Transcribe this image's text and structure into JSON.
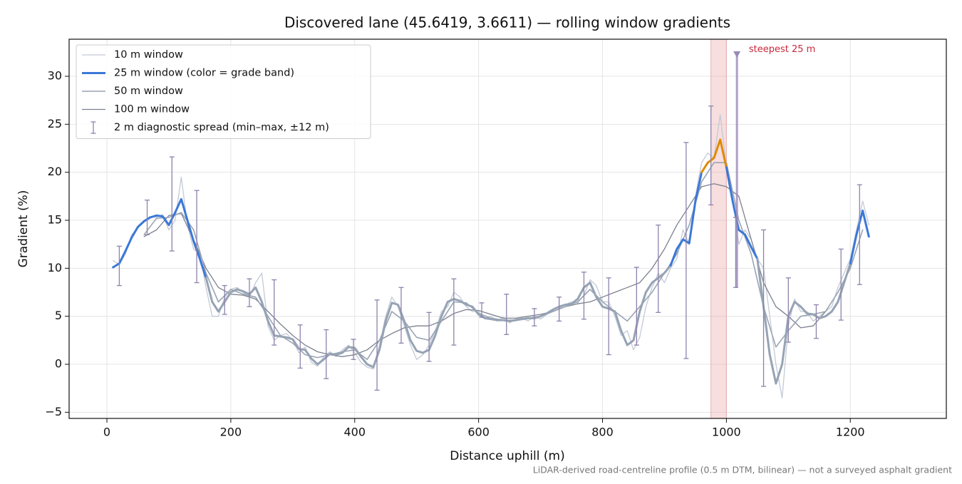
{
  "chart_data": {
    "type": "line",
    "title": "Discovered lane (45.6419, 3.6611) — rolling window gradients",
    "xlabel": "Distance uphill (m)",
    "ylabel": "Gradient (%)",
    "footnote": "LiDAR-derived road-centreline profile (0.5 m DTM, bilinear) — not a surveyed asphalt gradient",
    "xlim": [
      -61,
      1355
    ],
    "ylim": [
      -5.64,
      33.86
    ],
    "xticks": [
      0,
      200,
      400,
      600,
      800,
      1000,
      1200
    ],
    "yticks": [
      {
        "value": -5,
        "label": "−5"
      },
      0,
      5,
      10,
      15,
      20,
      25,
      30
    ],
    "grid": true,
    "legend": "upper left",
    "series": [
      {
        "name": "10 m window",
        "color": "#c3cad5",
        "width": 1.3,
        "x": [
          10,
          20,
          30,
          40,
          50,
          60,
          70,
          80,
          90,
          100,
          110,
          120,
          130,
          140,
          150,
          160,
          170,
          180,
          190,
          200,
          210,
          220,
          230,
          240,
          250,
          260,
          270,
          280,
          290,
          300,
          310,
          320,
          330,
          340,
          350,
          360,
          370,
          380,
          390,
          400,
          410,
          420,
          430,
          440,
          450,
          460,
          470,
          480,
          490,
          500,
          510,
          520,
          530,
          540,
          550,
          560,
          570,
          580,
          590,
          600,
          610,
          620,
          630,
          640,
          650,
          660,
          670,
          680,
          690,
          700,
          710,
          720,
          730,
          740,
          750,
          760,
          770,
          780,
          790,
          800,
          810,
          820,
          830,
          840,
          850,
          860,
          870,
          880,
          890,
          900,
          910,
          920,
          930,
          940,
          950,
          960,
          970,
          980,
          990,
          1000,
          1010,
          1020,
          1030,
          1040,
          1050,
          1060,
          1070,
          1080,
          1090,
          1100,
          1110,
          1120,
          1130,
          1140,
          1150,
          1160,
          1170,
          1180,
          1190,
          1200,
          1210,
          1220,
          1230
        ],
        "values": [
          10.8,
          10.4,
          11.5,
          13.5,
          14.2,
          15.0,
          15.4,
          15.3,
          15.6,
          14.0,
          15.0,
          19.5,
          14.5,
          12.0,
          11.5,
          8.0,
          5.0,
          5.0,
          7.0,
          7.8,
          8.0,
          7.5,
          7.0,
          8.5,
          9.5,
          4.0,
          2.5,
          3.0,
          3.2,
          2.5,
          1.2,
          1.8,
          0.2,
          -0.2,
          0.8,
          1.3,
          0.8,
          1.5,
          2.0,
          1.2,
          0.2,
          -0.3,
          -0.5,
          2.0,
          5.0,
          7.0,
          6.0,
          4.0,
          2.0,
          0.5,
          1.0,
          2.0,
          3.5,
          5.5,
          6.0,
          7.5,
          7.0,
          6.0,
          5.5,
          5.5,
          4.8,
          5.0,
          4.5,
          4.9,
          4.3,
          4.7,
          4.8,
          4.5,
          5.0,
          4.7,
          5.2,
          5.5,
          5.8,
          6.2,
          6.5,
          6.4,
          7.2,
          8.8,
          8.2,
          6.5,
          6.5,
          5.0,
          3.0,
          3.5,
          1.5,
          2.8,
          6.0,
          8.0,
          9.5,
          8.5,
          10.0,
          11.0,
          14.0,
          12.5,
          17.5,
          21.0,
          22.0,
          21.5,
          26.0,
          20.5,
          17.5,
          12.5,
          14.0,
          13.0,
          11.0,
          10.0,
          5.0,
          0.0,
          -3.5,
          4.0,
          6.8,
          5.5,
          5.5,
          4.5,
          5.0,
          5.5,
          6.0,
          8.0,
          9.5,
          11.0,
          14.0,
          17.0,
          14.5
        ]
      },
      {
        "name": "25 m window (color = grade band)",
        "color": "#3a78d8",
        "width": 3,
        "low_color": "#96a3b4",
        "grade_bands": [
          {
            "min": 10,
            "color": "#3a78d8"
          },
          {
            "min": 20,
            "color": "#e08a00"
          }
        ],
        "x": [
          10,
          20,
          30,
          40,
          50,
          60,
          70,
          80,
          90,
          100,
          110,
          120,
          130,
          140,
          150,
          160,
          170,
          180,
          190,
          200,
          210,
          220,
          230,
          240,
          250,
          260,
          270,
          280,
          290,
          300,
          310,
          320,
          330,
          340,
          350,
          360,
          370,
          380,
          390,
          400,
          410,
          420,
          430,
          440,
          450,
          460,
          470,
          480,
          490,
          500,
          510,
          520,
          530,
          540,
          550,
          560,
          570,
          580,
          590,
          600,
          610,
          620,
          630,
          640,
          650,
          660,
          670,
          680,
          690,
          700,
          710,
          720,
          730,
          740,
          750,
          760,
          770,
          780,
          790,
          800,
          810,
          820,
          830,
          840,
          850,
          860,
          870,
          880,
          890,
          900,
          910,
          920,
          930,
          940,
          950,
          960,
          970,
          980,
          990,
          1000,
          1010,
          1020,
          1030,
          1040,
          1050,
          1060,
          1070,
          1080,
          1090,
          1100,
          1110,
          1120,
          1130,
          1140,
          1150,
          1160,
          1170,
          1180,
          1190,
          1200,
          1210,
          1220,
          1230
        ],
        "values": [
          10.1,
          10.5,
          11.8,
          13.2,
          14.3,
          14.9,
          15.3,
          15.5,
          15.4,
          14.5,
          15.8,
          17.2,
          15.0,
          12.8,
          11.0,
          9.0,
          6.5,
          5.5,
          6.5,
          7.5,
          7.8,
          7.6,
          7.3,
          8.0,
          6.5,
          4.5,
          3.0,
          2.9,
          2.8,
          2.6,
          1.6,
          1.5,
          0.6,
          0.0,
          0.5,
          1.1,
          1.0,
          1.2,
          1.8,
          1.7,
          0.8,
          0.0,
          -0.3,
          1.5,
          4.5,
          6.4,
          6.2,
          4.5,
          2.5,
          1.4,
          1.2,
          1.5,
          3.0,
          5.0,
          6.5,
          6.8,
          6.6,
          6.2,
          6.0,
          5.2,
          4.8,
          4.7,
          4.6,
          4.6,
          4.5,
          4.6,
          4.7,
          4.8,
          4.8,
          5.0,
          5.3,
          5.7,
          6.0,
          6.2,
          6.3,
          6.8,
          8.0,
          8.5,
          7.0,
          6.0,
          5.8,
          5.5,
          3.5,
          2.0,
          2.5,
          5.5,
          7.5,
          8.5,
          9.0,
          9.5,
          10.3,
          12.0,
          13.0,
          12.6,
          17.0,
          20.0,
          21.0,
          21.5,
          23.4,
          20.5,
          17.0,
          14.0,
          13.5,
          12.2,
          11.0,
          6.0,
          1.0,
          -2.0,
          0.0,
          5.0,
          6.5,
          6.0,
          5.3,
          5.2,
          4.8,
          5.0,
          5.5,
          6.5,
          8.5,
          10.5,
          13.5,
          16.0,
          13.3
        ]
      },
      {
        "name": "50 m window",
        "color": "#9aa4b3",
        "width": 1.6,
        "x": [
          60,
          80,
          100,
          120,
          140,
          160,
          180,
          200,
          220,
          240,
          260,
          280,
          300,
          320,
          340,
          360,
          380,
          400,
          420,
          440,
          460,
          480,
          500,
          520,
          540,
          560,
          580,
          600,
          620,
          640,
          660,
          680,
          700,
          720,
          740,
          760,
          780,
          800,
          820,
          840,
          860,
          880,
          900,
          920,
          940,
          960,
          980,
          1000,
          1020,
          1040,
          1060,
          1080,
          1100,
          1120,
          1140,
          1160,
          1180,
          1200,
          1220
        ],
        "values": [
          13.5,
          15.2,
          15.3,
          15.8,
          14.0,
          9.5,
          6.5,
          7.8,
          7.3,
          7.0,
          5.0,
          3.0,
          2.2,
          1.0,
          0.7,
          1.0,
          1.3,
          1.5,
          0.5,
          2.5,
          5.5,
          4.5,
          2.8,
          2.5,
          4.5,
          6.5,
          6.4,
          5.3,
          4.8,
          4.6,
          4.6,
          4.8,
          5.0,
          5.5,
          6.0,
          6.5,
          7.8,
          6.5,
          5.5,
          4.5,
          6.0,
          7.5,
          9.5,
          11.5,
          14.5,
          19.0,
          21.0,
          21.0,
          15.0,
          11.5,
          6.0,
          1.8,
          3.5,
          5.0,
          5.2,
          5.5,
          7.5,
          10.0,
          14.0
        ]
      },
      {
        "name": "100 m window",
        "color": "#7c818f",
        "width": 1.3,
        "x": [
          60,
          80,
          100,
          120,
          140,
          160,
          180,
          200,
          220,
          240,
          260,
          280,
          300,
          320,
          340,
          360,
          380,
          400,
          420,
          440,
          460,
          480,
          500,
          520,
          540,
          560,
          580,
          600,
          620,
          640,
          660,
          680,
          700,
          720,
          740,
          760,
          780,
          800,
          820,
          840,
          860,
          880,
          900,
          920,
          940,
          960,
          980,
          1000,
          1020,
          1040,
          1060,
          1080,
          1100,
          1120,
          1140,
          1160,
          1180,
          1200
        ],
        "values": [
          13.3,
          14.0,
          15.5,
          15.7,
          13.0,
          10.0,
          8.0,
          7.3,
          7.2,
          6.8,
          5.5,
          4.2,
          3.0,
          2.0,
          1.3,
          1.0,
          0.8,
          1.0,
          1.5,
          2.5,
          3.2,
          3.8,
          4.0,
          4.0,
          4.5,
          5.3,
          5.7,
          5.6,
          5.2,
          4.8,
          4.8,
          5.0,
          5.2,
          5.5,
          6.0,
          6.3,
          6.5,
          7.0,
          7.5,
          8.0,
          8.5,
          10.0,
          12.0,
          14.5,
          16.5,
          18.5,
          18.8,
          18.5,
          17.5,
          13.0,
          8.5,
          6.0,
          5.0,
          3.8,
          4.0,
          5.5,
          7.5,
          10.0
        ]
      }
    ],
    "spread": {
      "name": "2 m diagnostic spread (min–max, ±12 m)",
      "color": "#8e82ad",
      "x": [
        20,
        65,
        105,
        145,
        190,
        230,
        270,
        312,
        354,
        398,
        436,
        475,
        520,
        560,
        605,
        645,
        690,
        730,
        770,
        810,
        855,
        890,
        935,
        975,
        1015,
        1060,
        1100,
        1145,
        1185,
        1215
      ],
      "min": [
        8.2,
        13.5,
        11.8,
        8.5,
        5.2,
        6.0,
        2.0,
        -0.4,
        -1.5,
        0.5,
        -2.7,
        2.2,
        0.3,
        2.0,
        4.9,
        3.1,
        4.0,
        4.5,
        4.7,
        1.0,
        2.0,
        5.4,
        0.6,
        16.6,
        8.0,
        -2.3,
        2.3,
        2.7,
        4.6,
        8.3
      ],
      "max": [
        12.3,
        17.1,
        21.6,
        18.1,
        8.2,
        8.9,
        8.8,
        4.1,
        3.6,
        2.6,
        6.7,
        8.0,
        5.4,
        8.9,
        6.4,
        7.3,
        5.8,
        7.0,
        9.6,
        9.0,
        10.1,
        14.5,
        23.1,
        26.9,
        15.3,
        14.0,
        9.0,
        6.2,
        12.0,
        18.7
      ]
    },
    "highlight": {
      "x": [
        975,
        1000
      ],
      "color": "#e8a0a4"
    },
    "steepest_marker": {
      "x": 1017,
      "y": 32.3,
      "ymin": 8.0,
      "color": "#9a88b8"
    },
    "annotation": {
      "text": "steepest 25 m",
      "x": 1090,
      "y": 32.8,
      "color": "#c8283c"
    }
  }
}
